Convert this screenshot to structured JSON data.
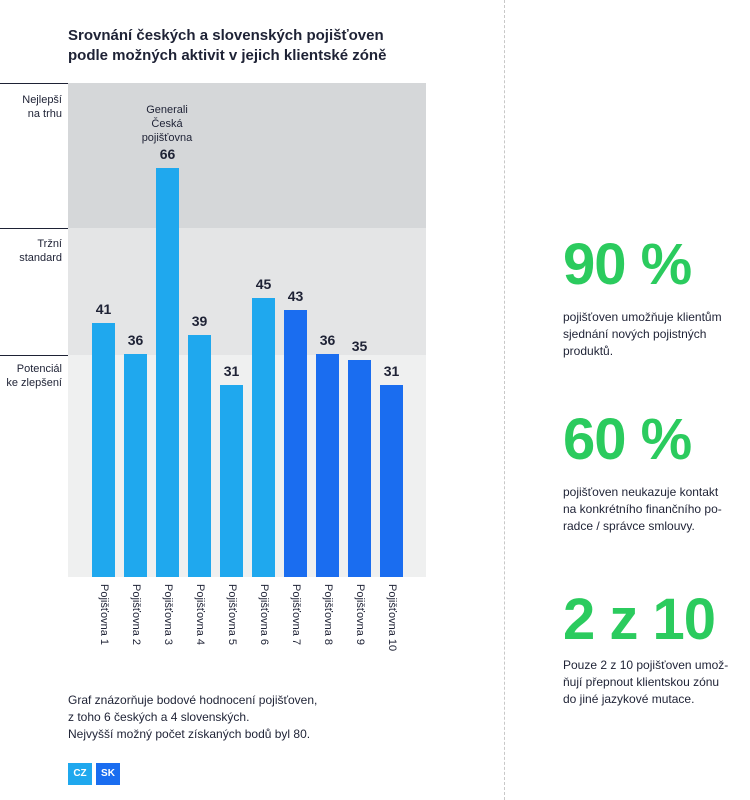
{
  "title": "Srovnání českých a slovenských pojišťoven podle možných aktivit v jejich klientské zóně",
  "zones": [
    {
      "label_line1": "Nejlepší",
      "label_line2": "na trhu"
    },
    {
      "label_line1": "Tržní",
      "label_line2": "standard"
    },
    {
      "label_line1": "Potenciál",
      "label_line2": "ke zlepšení"
    }
  ],
  "annotation": {
    "line1": "Generali",
    "line2": "Česká",
    "line3": "pojišťovna"
  },
  "chart_data": {
    "type": "bar",
    "title": "Srovnání českých a slovenských pojišťoven podle možných aktivit v jejich klientské zóně",
    "categories": [
      "Pojišťovna 1",
      "Pojišťovna 2",
      "Pojišťovna 3",
      "Pojišťovna 4",
      "Pojišťovna 5",
      "Pojišťovna 6",
      "Pojišťovna 7",
      "Pojišťovna 8",
      "Pojišťovna 9",
      "Pojišťovna 10"
    ],
    "values": [
      41,
      36,
      66,
      39,
      31,
      45,
      43,
      36,
      35,
      31
    ],
    "groups": [
      "CZ",
      "CZ",
      "CZ",
      "CZ",
      "CZ",
      "CZ",
      "SK",
      "SK",
      "SK",
      "SK"
    ],
    "ylim": [
      0,
      80
    ],
    "xlabel": "",
    "ylabel": "",
    "colors": {
      "CZ": "#1fa8ee",
      "SK": "#1a6df0"
    }
  },
  "note": {
    "line1": "Graf znázorňuje bodové hodnocení pojišťoven,",
    "line2": "z toho 6 českých a 4 slovenských.",
    "line3": "Nejvyšší možný počet získaných bodů byl 80."
  },
  "legend": [
    {
      "label": "CZ",
      "color": "#1fa8ee"
    },
    {
      "label": "SK",
      "color": "#1a6df0"
    }
  ],
  "stats": [
    {
      "value": "90 %",
      "lines": [
        "pojišťoven umožňuje klientům",
        "sjednání nových pojistných",
        "produktů."
      ]
    },
    {
      "value": "60 %",
      "lines": [
        "pojišťoven neukazuje kontakt",
        "na konkrétního finančního po-",
        "radce / správce smlouvy."
      ]
    },
    {
      "value": "2 z 10",
      "lines": [
        "Pouze 2 z 10 pojišťoven umož-",
        "ňují přepnout klientskou zónu",
        "do jiné jazykové mutace."
      ]
    }
  ]
}
